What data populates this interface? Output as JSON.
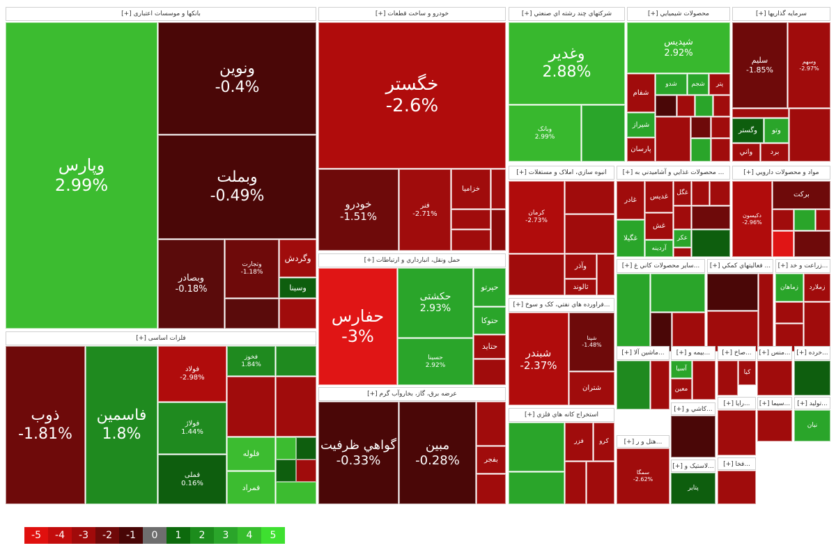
{
  "sectors": [
    {
      "title": "بانکها و موسسات اعتباری [+]",
      "tiles": [
        {
          "symbol": "وپارس",
          "change": "2.99%"
        },
        {
          "symbol": "ونوین",
          "change": "-0.4%"
        },
        {
          "symbol": "وبملت",
          "change": "-0.49%"
        },
        {
          "symbol": "وبصادر",
          "change": "-0.18%"
        },
        {
          "symbol": "وتجارت",
          "change": "-1.18%"
        },
        {
          "symbol": "وگردش"
        },
        {
          "symbol": "وسينا"
        }
      ]
    },
    {
      "title": "فلزات اساسی [+]",
      "tiles": [
        {
          "symbol": "ذوب",
          "change": "-1.81%"
        },
        {
          "symbol": "فاسمين",
          "change": "1.8%"
        },
        {
          "symbol": "فولاد",
          "change": "-2.98%"
        },
        {
          "symbol": "فولاژ",
          "change": "1.44%"
        },
        {
          "symbol": "فملی",
          "change": "0.16%"
        },
        {
          "symbol": "فخوز",
          "change": "1.84%"
        },
        {
          "symbol": "فلوله"
        },
        {
          "symbol": "فمراد"
        }
      ]
    },
    {
      "title": "خودرو و ساخت قطعات [+]",
      "tiles": [
        {
          "symbol": "خگستر",
          "change": "-2.6%"
        },
        {
          "symbol": "خودرو",
          "change": "-1.51%"
        },
        {
          "symbol": "فنر",
          "change": "-2.71%"
        },
        {
          "symbol": "خزاميا"
        }
      ]
    },
    {
      "title": "حمل ونقل، انبارداري و ارتباطات [+]",
      "tiles": [
        {
          "symbol": "حفارس",
          "change": "-3%"
        },
        {
          "symbol": "حکشتی",
          "change": "2.93%"
        },
        {
          "symbol": "حسينا",
          "change": "2.92%"
        },
        {
          "symbol": "حپرتو"
        },
        {
          "symbol": "حتوکا"
        },
        {
          "symbol": "حتايد"
        }
      ]
    },
    {
      "title": "عرضه برق، گاز، بخاروآب گرم [+]",
      "tiles": [
        {
          "symbol": "گواهي ظرفيت",
          "change": "-0.33%"
        },
        {
          "symbol": "مبين",
          "change": "-0.28%"
        },
        {
          "symbol": "بفجر"
        }
      ]
    },
    {
      "title": "شرکتهاي چند رشته اي صنعتي [+]",
      "tiles": [
        {
          "symbol": "وغدير",
          "change": "2.88%"
        },
        {
          "symbol": "وبانک",
          "change": "2.99%"
        }
      ]
    },
    {
      "title": "محصولات شيميايي [+]",
      "tiles": [
        {
          "symbol": "شپديس",
          "change": "2.92%"
        },
        {
          "symbol": "شفام"
        },
        {
          "symbol": "شدو"
        },
        {
          "symbol": "شجم"
        },
        {
          "symbol": "پتر"
        },
        {
          "symbol": "شيراز"
        },
        {
          "symbol": "پارسان"
        }
      ]
    },
    {
      "title": "سرمايه گذاريها [+]",
      "tiles": [
        {
          "symbol": "سليم",
          "change": "-1.85%"
        },
        {
          "symbol": "وسهم",
          "change": "-2.97%"
        },
        {
          "symbol": "وگستر"
        },
        {
          "symbol": "وتو"
        },
        {
          "symbol": "واني"
        },
        {
          "symbol": "برد"
        }
      ]
    },
    {
      "title": "انبوه سازي، املاک و مستغلات [+]",
      "tiles": [
        {
          "symbol": "کرمان",
          "change": "-2.73%"
        },
        {
          "symbol": "وآذر"
        },
        {
          "symbol": "ثالوند"
        }
      ]
    },
    {
      "title": "... محصولات غذايي و آشاميدني به [+]",
      "tiles": [
        {
          "symbol": "غادر"
        },
        {
          "symbol": "غديس"
        },
        {
          "symbol": "غگل"
        },
        {
          "symbol": "غگيلا"
        },
        {
          "symbol": "غش"
        },
        {
          "symbol": "آردينه"
        },
        {
          "symbol": "عکر"
        }
      ]
    },
    {
      "title": "مواد و محصولات دارويي [+]",
      "tiles": [
        {
          "symbol": "دکيسون",
          "change": "-2.96%"
        },
        {
          "symbol": "برکت"
        }
      ]
    },
    {
      "title": "...فراورده هاي نفتي، کک و سوخ [+]",
      "tiles": [
        {
          "symbol": "شبندر",
          "change": "-2.37%"
        },
        {
          "symbol": "شپنا",
          "change": "-1.48%"
        },
        {
          "symbol": "شتران"
        }
      ]
    },
    {
      "title": "...ساير محصولات کاني غ [+]",
      "tiles": []
    },
    {
      "title": "... فعاليتهاي کمکي [+]",
      "tiles": []
    },
    {
      "title": "...زراعت و خد [+]",
      "tiles": [
        {
          "symbol": "زماهان"
        },
        {
          "symbol": "زملارد"
        }
      ]
    },
    {
      "title": "استخراج کانه هاي فلزي [+]",
      "tiles": [
        {
          "symbol": "فزر"
        },
        {
          "symbol": "کرو"
        }
      ]
    },
    {
      "title": "...ماشين آلا [+]",
      "tiles": []
    },
    {
      "title": "...بيمه و [+]",
      "tiles": [
        {
          "symbol": "آسيا"
        },
        {
          "symbol": "معين"
        }
      ]
    },
    {
      "title": "...صاخ [+]",
      "tiles": [
        {
          "symbol": "کيا"
        }
      ]
    },
    {
      "title": "...منس [+]",
      "tiles": []
    },
    {
      "title": "...خرده [+]",
      "tiles": []
    },
    {
      "title": "...کاشي و [+]",
      "tiles": []
    },
    {
      "title": "...هتل و ر [+]",
      "tiles": [
        {
          "symbol": "سمگا",
          "change": "-2.62%"
        }
      ]
    },
    {
      "title": "...سيما [+]",
      "tiles": []
    },
    {
      "title": "...توليد [+]",
      "tiles": [
        {
          "symbol": "نيان"
        }
      ]
    },
    {
      "title": "...رايا [+]",
      "tiles": []
    },
    {
      "title": "...لاستيک و [+]",
      "tiles": [
        {
          "symbol": "پتاير"
        }
      ]
    },
    {
      "title": "...فخا [+]",
      "tiles": []
    }
  ],
  "legend": {
    "labels": [
      "-5",
      "-4",
      "-3",
      "-2",
      "-1",
      "0",
      "1",
      "2",
      "3",
      "4",
      "5"
    ],
    "colors": [
      "#e0100e",
      "#c20c0c",
      "#a00a0a",
      "#700909",
      "#480606",
      "#6e6e6e",
      "#0d6a0d",
      "#1c8c1c",
      "#2aa52a",
      "#36bd2c",
      "#3ee030"
    ]
  }
}
